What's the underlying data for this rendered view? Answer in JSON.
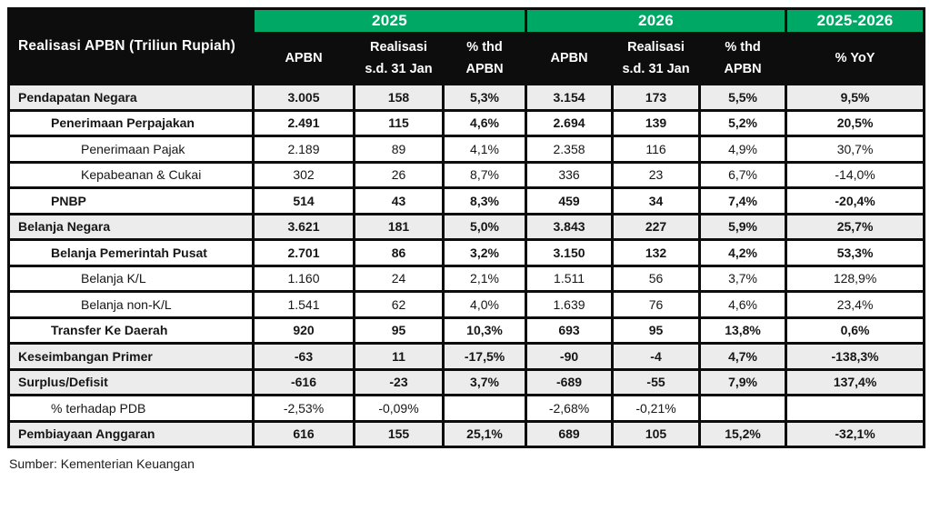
{
  "header": {
    "title": "Realisasi APBN (Triliun Rupiah)",
    "groups": [
      {
        "label": "2025",
        "span": 3
      },
      {
        "label": "2026",
        "span": 3
      },
      {
        "label": "2025-2026",
        "span": 1
      }
    ],
    "columns": [
      {
        "line1": "APBN",
        "line2": ""
      },
      {
        "line1": "Realisasi",
        "line2": "s.d. 31 Jan"
      },
      {
        "line1": "% thd",
        "line2": "APBN"
      },
      {
        "line1": "APBN",
        "line2": ""
      },
      {
        "line1": "Realisasi",
        "line2": "s.d. 31 Jan"
      },
      {
        "line1": "% thd",
        "line2": "APBN"
      },
      {
        "line1": "% YoY",
        "line2": ""
      }
    ]
  },
  "rows": [
    {
      "label": "Pendapatan Negara",
      "indent": 0,
      "bold": true,
      "shaded": true,
      "values": [
        "3.005",
        "158",
        "5,3%",
        "3.154",
        "173",
        "5,5%",
        "9,5%"
      ]
    },
    {
      "label": "Penerimaan Perpajakan",
      "indent": 1,
      "bold": true,
      "shaded": false,
      "values": [
        "2.491",
        "115",
        "4,6%",
        "2.694",
        "139",
        "5,2%",
        "20,5%"
      ]
    },
    {
      "label": "Penerimaan Pajak",
      "indent": 2,
      "bold": false,
      "shaded": false,
      "values": [
        "2.189",
        "89",
        "4,1%",
        "2.358",
        "116",
        "4,9%",
        "30,7%"
      ]
    },
    {
      "label": "Kepabeanan & Cukai",
      "indent": 2,
      "bold": false,
      "shaded": false,
      "values": [
        "302",
        "26",
        "8,7%",
        "336",
        "23",
        "6,7%",
        "-14,0%"
      ]
    },
    {
      "label": "PNBP",
      "indent": 1,
      "bold": true,
      "shaded": false,
      "values": [
        "514",
        "43",
        "8,3%",
        "459",
        "34",
        "7,4%",
        "-20,4%"
      ]
    },
    {
      "label": "Belanja Negara",
      "indent": 0,
      "bold": true,
      "shaded": true,
      "values": [
        "3.621",
        "181",
        "5,0%",
        "3.843",
        "227",
        "5,9%",
        "25,7%"
      ]
    },
    {
      "label": "Belanja Pemerintah Pusat",
      "indent": 1,
      "bold": true,
      "shaded": false,
      "values": [
        "2.701",
        "86",
        "3,2%",
        "3.150",
        "132",
        "4,2%",
        "53,3%"
      ]
    },
    {
      "label": "Belanja K/L",
      "indent": 2,
      "bold": false,
      "shaded": false,
      "values": [
        "1.160",
        "24",
        "2,1%",
        "1.511",
        "56",
        "3,7%",
        "128,9%"
      ]
    },
    {
      "label": "Belanja non-K/L",
      "indent": 2,
      "bold": false,
      "shaded": false,
      "values": [
        "1.541",
        "62",
        "4,0%",
        "1.639",
        "76",
        "4,6%",
        "23,4%"
      ]
    },
    {
      "label": "Transfer Ke Daerah",
      "indent": 1,
      "bold": true,
      "shaded": false,
      "values": [
        "920",
        "95",
        "10,3%",
        "693",
        "95",
        "13,8%",
        "0,6%"
      ]
    },
    {
      "label": "Keseimbangan Primer",
      "indent": 0,
      "bold": true,
      "shaded": true,
      "values": [
        "-63",
        "11",
        "-17,5%",
        "-90",
        "-4",
        "4,7%",
        "-138,3%"
      ]
    },
    {
      "label": "Surplus/Defisit",
      "indent": 0,
      "bold": true,
      "shaded": true,
      "values": [
        "-616",
        "-23",
        "3,7%",
        "-689",
        "-55",
        "7,9%",
        "137,4%"
      ]
    },
    {
      "label": "% terhadap PDB",
      "indent": 1,
      "bold": false,
      "shaded": false,
      "values": [
        "-2,53%",
        "-0,09%",
        "",
        "-2,68%",
        "-0,21%",
        "",
        ""
      ]
    },
    {
      "label": "Pembiayaan Anggaran",
      "indent": 0,
      "bold": true,
      "shaded": true,
      "values": [
        "616",
        "155",
        "25,1%",
        "689",
        "105",
        "15,2%",
        "-32,1%"
      ]
    }
  ],
  "footer": {
    "source": "Sumber: Kementerian Keuangan"
  },
  "colors": {
    "group_band_green": "#00A865",
    "header_black": "#0D0D0D",
    "shaded_row_gray": "#ECECEC",
    "border_black": "#0D0D0D"
  }
}
